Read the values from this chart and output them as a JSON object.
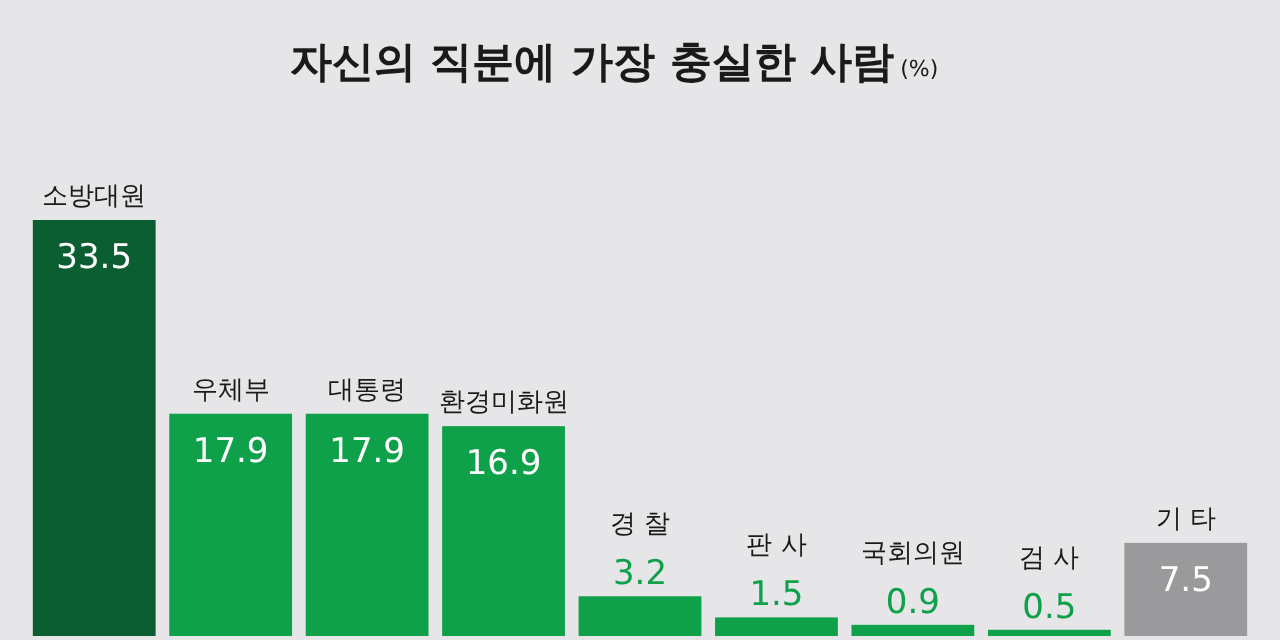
{
  "chart_data": {
    "type": "bar",
    "title": "자신의 직분에 가장 충실한 사람",
    "subtitle": "(%)",
    "categories": [
      "소방대원",
      "우체부",
      "대통령",
      "환경미화원",
      "경 찰",
      "판 사",
      "국회의원",
      "검 사",
      "기 타"
    ],
    "values": [
      33.5,
      17.9,
      17.9,
      16.9,
      3.2,
      1.5,
      0.9,
      0.5,
      7.5
    ],
    "colors": [
      "#0b5e32",
      "#0fa14a",
      "#0fa14a",
      "#0fa14a",
      "#0fa14a",
      "#0fa14a",
      "#0fa14a",
      "#0fa14a",
      "#9a9a9c"
    ],
    "data_labels": true
  }
}
